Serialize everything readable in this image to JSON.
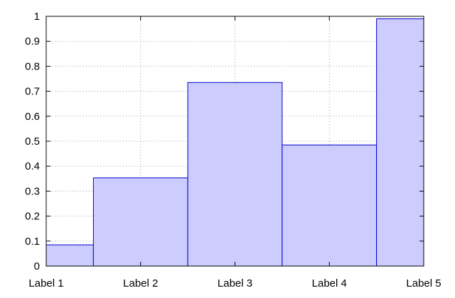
{
  "chart_data": {
    "type": "bar",
    "categories": [
      "Label 1",
      "Label 2",
      "Label 3",
      "Label 4",
      "Label 5"
    ],
    "values": [
      0.085,
      0.353,
      0.735,
      0.485,
      0.99
    ],
    "ylim": [
      0,
      1
    ],
    "yticks": [
      "0",
      "0.1",
      "0.2",
      "0.3",
      "0.4",
      "0.5",
      "0.6",
      "0.7",
      "0.8",
      "0.9",
      "1"
    ],
    "xticks": [
      "Label 1",
      "Label 2",
      "Label 3",
      "Label 4",
      "Label 5"
    ],
    "grid": true,
    "bar_fill": "#ccccff",
    "bar_edge": "#0000cc",
    "axis_color": "#000000",
    "grid_color": "#a0a0a0"
  }
}
